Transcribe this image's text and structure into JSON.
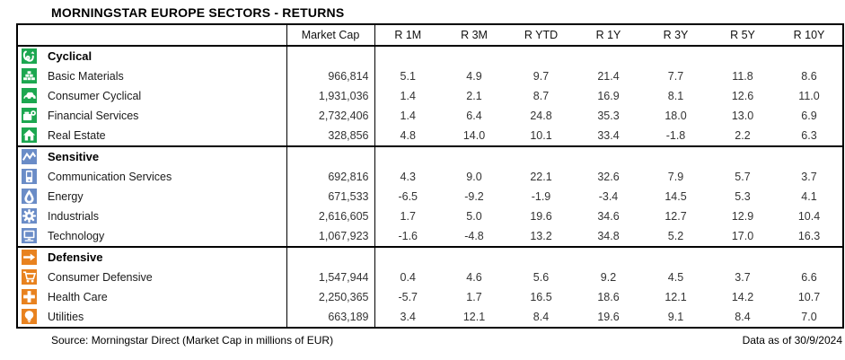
{
  "title": "MORNINGSTAR EUROPE SECTORS - RETURNS",
  "colors": {
    "cyclical": "#1CA750",
    "sensitive": "#6A8CC7",
    "defensive": "#E8821F",
    "border": "#000000"
  },
  "chart_data": {
    "type": "table",
    "title": "MORNINGSTAR EUROPE SECTORS - RETURNS",
    "columns": [
      "Market Cap",
      "R 1M",
      "R 3M",
      "R YTD",
      "R 1Y",
      "R 3Y",
      "R 5Y",
      "R 10Y"
    ],
    "sections": [
      {
        "name": "Cyclical",
        "icon": "cyclical-icon",
        "color": "#1CA750",
        "rows": [
          {
            "name": "Basic Materials",
            "icon": "basic-materials-icon",
            "market_cap": "966,814",
            "returns": [
              "5.1",
              "4.9",
              "9.7",
              "21.4",
              "7.7",
              "11.8",
              "8.6"
            ]
          },
          {
            "name": "Consumer Cyclical",
            "icon": "consumer-cyclical-icon",
            "market_cap": "1,931,036",
            "returns": [
              "1.4",
              "2.1",
              "8.7",
              "16.9",
              "8.1",
              "12.6",
              "11.0"
            ]
          },
          {
            "name": "Financial Services",
            "icon": "financial-services-icon",
            "market_cap": "2,732,406",
            "returns": [
              "1.4",
              "6.4",
              "24.8",
              "35.3",
              "18.0",
              "13.0",
              "6.9"
            ]
          },
          {
            "name": "Real Estate",
            "icon": "real-estate-icon",
            "market_cap": "328,856",
            "returns": [
              "4.8",
              "14.0",
              "10.1",
              "33.4",
              "-1.8",
              "2.2",
              "6.3"
            ]
          }
        ]
      },
      {
        "name": "Sensitive",
        "icon": "sensitive-icon",
        "color": "#6A8CC7",
        "rows": [
          {
            "name": "Communication Services",
            "icon": "communication-services-icon",
            "market_cap": "692,816",
            "returns": [
              "4.3",
              "9.0",
              "22.1",
              "32.6",
              "7.9",
              "5.7",
              "3.7"
            ]
          },
          {
            "name": "Energy",
            "icon": "energy-icon",
            "market_cap": "671,533",
            "returns": [
              "-6.5",
              "-9.2",
              "-1.9",
              "-3.4",
              "14.5",
              "5.3",
              "4.1"
            ]
          },
          {
            "name": "Industrials",
            "icon": "industrials-icon",
            "market_cap": "2,616,605",
            "returns": [
              "1.7",
              "5.0",
              "19.6",
              "34.6",
              "12.7",
              "12.9",
              "10.4"
            ]
          },
          {
            "name": "Technology",
            "icon": "technology-icon",
            "market_cap": "1,067,923",
            "returns": [
              "-1.6",
              "-4.8",
              "13.2",
              "34.8",
              "5.2",
              "17.0",
              "16.3"
            ]
          }
        ]
      },
      {
        "name": "Defensive",
        "icon": "defensive-icon",
        "color": "#E8821F",
        "rows": [
          {
            "name": "Consumer Defensive",
            "icon": "consumer-defensive-icon",
            "market_cap": "1,547,944",
            "returns": [
              "0.4",
              "4.6",
              "5.6",
              "9.2",
              "4.5",
              "3.7",
              "6.6"
            ]
          },
          {
            "name": "Health Care",
            "icon": "health-care-icon",
            "market_cap": "2,250,365",
            "returns": [
              "-5.7",
              "1.7",
              "16.5",
              "18.6",
              "12.1",
              "14.2",
              "10.7"
            ]
          },
          {
            "name": "Utilities",
            "icon": "utilities-icon",
            "market_cap": "663,189",
            "returns": [
              "3.4",
              "12.1",
              "8.4",
              "19.6",
              "9.1",
              "8.4",
              "7.0"
            ]
          }
        ]
      }
    ]
  },
  "footer": {
    "source": "Source: Morningstar Direct (Market Cap in millions of EUR)",
    "data_as_of": "Data as of 30/9/2024"
  }
}
